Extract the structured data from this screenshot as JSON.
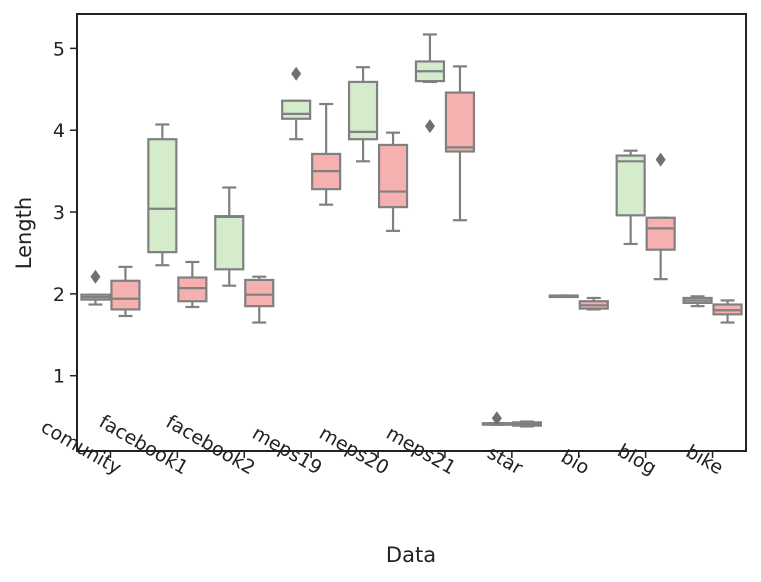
{
  "chart_data": {
    "type": "boxplot",
    "title": "",
    "xlabel": "Data",
    "ylabel": "Length",
    "ylim": [
      0.08,
      5.42
    ],
    "yticks": [
      1,
      2,
      3,
      4,
      5
    ],
    "categories": [
      "comunity",
      "facebook1",
      "facebook2",
      "meps19",
      "meps20",
      "meps21",
      "star",
      "bio",
      "blog",
      "bike"
    ],
    "legend": "none",
    "grid": false,
    "series": [
      {
        "name": "green",
        "color": "#d4ebcc",
        "boxes": [
          {
            "whislo": 1.87,
            "q1": 1.93,
            "med": 1.96,
            "q3": 1.99,
            "whishi": 1.99,
            "fliers": [
              2.21
            ]
          },
          {
            "whislo": 2.35,
            "q1": 2.51,
            "med": 3.04,
            "q3": 3.89,
            "whishi": 4.07,
            "fliers": []
          },
          {
            "whislo": 2.1,
            "q1": 2.3,
            "med": 2.94,
            "q3": 2.95,
            "whishi": 3.3,
            "fliers": []
          },
          {
            "whislo": 3.89,
            "q1": 4.14,
            "med": 4.2,
            "q3": 4.36,
            "whishi": 4.36,
            "fliers": [
              4.69
            ]
          },
          {
            "whislo": 3.62,
            "q1": 3.89,
            "med": 3.98,
            "q3": 4.59,
            "whishi": 4.77,
            "fliers": []
          },
          {
            "whislo": 4.59,
            "q1": 4.6,
            "med": 4.72,
            "q3": 4.84,
            "whishi": 5.17,
            "fliers": [
              4.05
            ]
          },
          {
            "whislo": 0.4,
            "q1": 0.41,
            "med": 0.41,
            "q3": 0.42,
            "whishi": 0.42,
            "fliers": [
              0.48
            ]
          },
          {
            "whislo": 1.97,
            "q1": 1.97,
            "med": 1.97,
            "q3": 1.98,
            "whishi": 1.98,
            "fliers": []
          },
          {
            "whislo": 2.61,
            "q1": 2.96,
            "med": 3.62,
            "q3": 3.69,
            "whishi": 3.75,
            "fliers": []
          },
          {
            "whislo": 1.85,
            "q1": 1.89,
            "med": 1.92,
            "q3": 1.95,
            "whishi": 1.97,
            "fliers": []
          }
        ]
      },
      {
        "name": "pink",
        "color": "#f5b0b0",
        "boxes": [
          {
            "whislo": 1.73,
            "q1": 1.81,
            "med": 1.94,
            "q3": 2.16,
            "whishi": 2.33,
            "fliers": []
          },
          {
            "whislo": 1.84,
            "q1": 1.91,
            "med": 2.07,
            "q3": 2.2,
            "whishi": 2.39,
            "fliers": []
          },
          {
            "whislo": 1.65,
            "q1": 1.85,
            "med": 1.99,
            "q3": 2.17,
            "whishi": 2.21,
            "fliers": []
          },
          {
            "whislo": 3.09,
            "q1": 3.28,
            "med": 3.5,
            "q3": 3.71,
            "whishi": 4.32,
            "fliers": []
          },
          {
            "whislo": 2.77,
            "q1": 3.06,
            "med": 3.25,
            "q3": 3.82,
            "whishi": 3.97,
            "fliers": []
          },
          {
            "whislo": 2.9,
            "q1": 3.74,
            "med": 3.79,
            "q3": 4.46,
            "whishi": 4.78,
            "fliers": []
          },
          {
            "whislo": 0.38,
            "q1": 0.39,
            "med": 0.41,
            "q3": 0.43,
            "whishi": 0.44,
            "fliers": []
          },
          {
            "whislo": 1.81,
            "q1": 1.82,
            "med": 1.86,
            "q3": 1.91,
            "whishi": 1.95,
            "fliers": []
          },
          {
            "whislo": 2.18,
            "q1": 2.54,
            "med": 2.8,
            "q3": 2.93,
            "whishi": 2.93,
            "fliers": [
              3.64
            ]
          },
          {
            "whislo": 1.65,
            "q1": 1.75,
            "med": 1.8,
            "q3": 1.87,
            "whishi": 1.92,
            "fliers": []
          }
        ]
      }
    ]
  }
}
